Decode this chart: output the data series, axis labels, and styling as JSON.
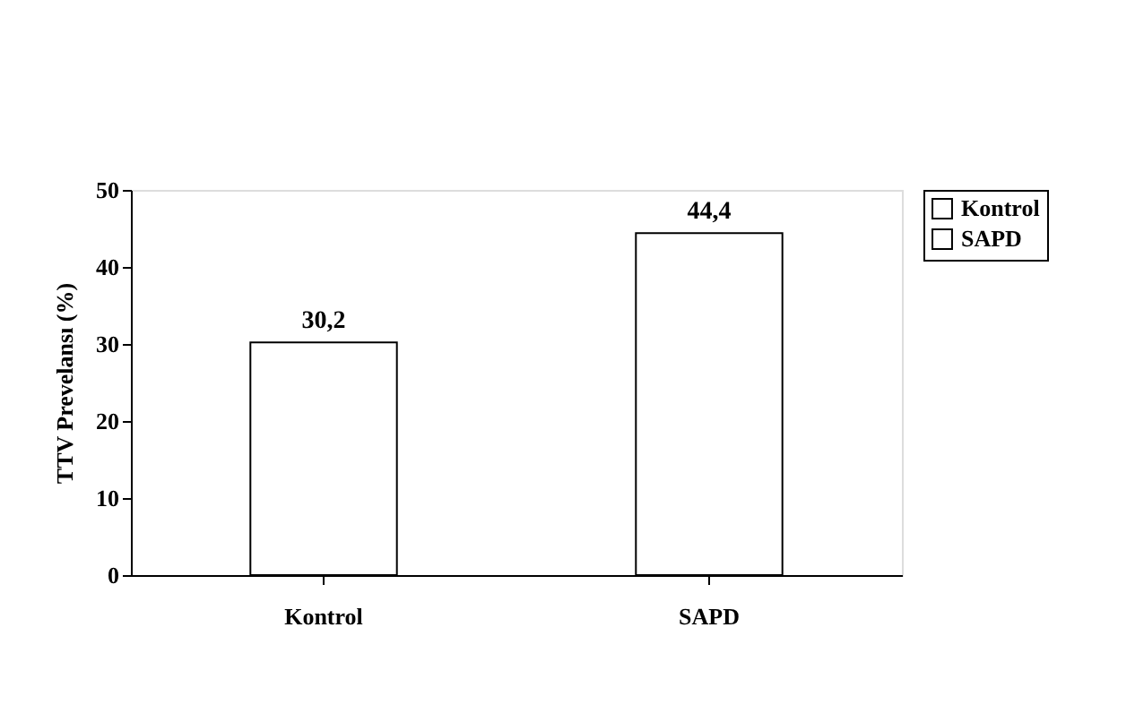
{
  "chart_data": {
    "type": "bar",
    "ylabel": "TTV Prevelansı (%)",
    "categories": [
      "Kontrol",
      "SAPD"
    ],
    "series": [
      {
        "name": "Kontrol",
        "color": "#ffffff",
        "values": [
          30.2,
          null
        ],
        "value_labels": [
          "30,2",
          null
        ]
      },
      {
        "name": "SAPD",
        "color": "#ffffff",
        "values": [
          null,
          44.4
        ],
        "value_labels": [
          null,
          "44,4"
        ]
      }
    ],
    "ylim": [
      0,
      50
    ],
    "yticks": [
      0,
      10,
      20,
      30,
      40,
      50
    ],
    "grid": false,
    "legend": "right"
  }
}
